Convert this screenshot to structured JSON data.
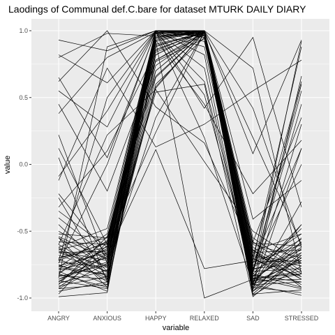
{
  "chart_data": {
    "type": "line",
    "subtype": "parallel-coordinates",
    "title": "Laodings of Communal def.C.bare for dataset MTURK DAILY DIARY",
    "xlabel": "variable",
    "ylabel": "value",
    "categories": [
      "ANGRY",
      "ANXIOUS",
      "HAPPY",
      "RELAXED",
      "SAD",
      "STRESSED"
    ],
    "ylim": [
      -1.0,
      1.0
    ],
    "yticks": [
      -1.0,
      -0.5,
      0.0,
      0.5,
      1.0
    ],
    "ytick_labels": [
      "-1.0",
      "-0.5",
      "0.0",
      "0.5",
      "1.0"
    ],
    "grid": true,
    "background": "#ebebeb",
    "grid_color": "#ffffff",
    "line_color": "#000000",
    "series": [
      {
        "values": [
          0.93,
          0.85,
          1.0,
          1.0,
          0.08,
          0.93
        ]
      },
      {
        "values": [
          0.82,
          0.61,
          1.0,
          0.99,
          -0.69,
          0.62
        ]
      },
      {
        "values": [
          0.8,
          0.98,
          0.96,
          0.98,
          -0.74,
          0.12
        ]
      },
      {
        "values": [
          0.65,
          0.05,
          0.99,
          0.42,
          0.95,
          -0.32
        ]
      },
      {
        "values": [
          0.55,
          0.28,
          1.0,
          0.52,
          -0.81,
          0.45
        ]
      },
      {
        "values": [
          0.38,
          0.8,
          0.99,
          0.99,
          -0.41,
          -0.12
        ]
      },
      {
        "values": [
          0.12,
          -0.6,
          0.93,
          0.45,
          -0.22,
          0.18
        ]
      },
      {
        "values": [
          -0.09,
          0.4,
          1.0,
          0.98,
          -0.79,
          -0.64
        ]
      },
      {
        "values": [
          -0.22,
          -0.68,
          0.11,
          -0.78,
          -0.72,
          0.88
        ]
      },
      {
        "values": [
          -0.32,
          0.1,
          0.85,
          1.0,
          0.72,
          -0.82
        ]
      },
      {
        "values": [
          -0.45,
          -0.8,
          1.0,
          1.0,
          -0.59,
          -0.61
        ]
      },
      {
        "values": [
          -0.5,
          -0.71,
          0.99,
          0.96,
          -0.9,
          -0.45
        ]
      },
      {
        "values": [
          -0.52,
          -0.55,
          0.7,
          1.0,
          -0.85,
          -0.82
        ]
      },
      {
        "values": [
          -0.55,
          -0.92,
          0.82,
          1.0,
          -0.75,
          -0.68
        ]
      },
      {
        "values": [
          -0.58,
          -0.6,
          1.0,
          0.99,
          -0.82,
          -0.92
        ]
      },
      {
        "values": [
          -0.6,
          0.22,
          0.56,
          0.02,
          -0.5,
          -0.74
        ]
      },
      {
        "values": [
          -0.62,
          -0.48,
          1.0,
          0.99,
          -0.88,
          -0.55
        ]
      },
      {
        "values": [
          -0.63,
          -0.88,
          0.95,
          0.99,
          -0.66,
          -0.86
        ]
      },
      {
        "values": [
          -0.65,
          -0.72,
          1.0,
          0.99,
          -0.93,
          -0.63
        ]
      },
      {
        "values": [
          -0.66,
          -0.65,
          0.78,
          0.97,
          -0.58,
          0.35
        ]
      },
      {
        "values": [
          -0.68,
          -0.8,
          1.0,
          1.0,
          -0.8,
          -0.78
        ]
      },
      {
        "values": [
          -0.7,
          -0.62,
          0.92,
          1.0,
          -0.7,
          -0.9
        ]
      },
      {
        "values": [
          -0.71,
          -0.85,
          0.65,
          0.99,
          -0.87,
          -0.58
        ]
      },
      {
        "values": [
          -0.72,
          -0.58,
          1.0,
          1.0,
          -0.95,
          -0.7
        ]
      },
      {
        "values": [
          -0.73,
          -0.77,
          0.89,
          0.98,
          -0.62,
          -0.84
        ]
      },
      {
        "values": [
          -0.74,
          0.0,
          1.0,
          0.99,
          -0.85,
          -0.93
        ]
      },
      {
        "values": [
          -0.75,
          -0.9,
          0.98,
          0.96,
          -0.76,
          -0.52
        ]
      },
      {
        "values": [
          -0.76,
          -0.66,
          0.74,
          0.99,
          -0.9,
          -0.88
        ]
      },
      {
        "values": [
          -0.77,
          -0.52,
          1.0,
          1.0,
          -0.68,
          -0.74
        ]
      },
      {
        "values": [
          -0.78,
          -0.82,
          0.6,
          0.95,
          -0.97,
          -0.66
        ]
      },
      {
        "values": [
          -0.79,
          -0.7,
          1.0,
          0.99,
          -0.8,
          0.6
        ]
      },
      {
        "values": [
          -0.8,
          -0.95,
          0.93,
          1.0,
          -0.55,
          -0.8
        ]
      },
      {
        "values": [
          -0.81,
          -0.63,
          0.84,
          0.97,
          -0.92,
          -0.96
        ]
      },
      {
        "values": [
          -0.82,
          -0.57,
          1.0,
          0.99,
          -0.73,
          -0.6
        ]
      },
      {
        "values": [
          -0.83,
          -0.86,
          0.7,
          1.0,
          -0.88,
          -0.72
        ]
      },
      {
        "values": [
          -0.84,
          -0.75,
          0.99,
          0.92,
          -0.64,
          -0.86
        ]
      },
      {
        "values": [
          -0.85,
          0.88,
          1.0,
          0.99,
          -0.82,
          -0.48
        ]
      },
      {
        "values": [
          -0.86,
          -0.69,
          0.96,
          1.0,
          -0.98,
          -0.76
        ]
      },
      {
        "values": [
          -0.87,
          -0.93,
          0.78,
          0.99,
          -0.71,
          -0.84
        ]
      },
      {
        "values": [
          -0.88,
          -0.61,
          1.0,
          0.96,
          -0.86,
          -0.62
        ]
      },
      {
        "values": [
          -0.89,
          -0.79,
          0.88,
          1.0,
          -0.9,
          -0.98
        ]
      },
      {
        "values": [
          -0.9,
          -0.54,
          0.66,
          0.99,
          -0.6,
          -0.7
        ]
      },
      {
        "values": [
          -0.91,
          -0.84,
          1.0,
          0.97,
          -0.77,
          -0.56
        ]
      },
      {
        "values": [
          -0.92,
          -0.67,
          0.95,
          1.0,
          -0.94,
          0.12
        ]
      },
      {
        "values": [
          -0.93,
          -0.74,
          0.57,
          0.99,
          -0.83,
          -0.88
        ]
      },
      {
        "values": [
          -0.95,
          -0.88,
          1.0,
          0.98,
          -0.66,
          -0.64
        ]
      },
      {
        "values": [
          -0.97,
          -0.58,
          0.82,
          1.0,
          -0.89,
          -0.82
        ]
      },
      {
        "values": [
          -0.99,
          -0.96,
          0.99,
          0.99,
          -0.78,
          -0.74
        ]
      },
      {
        "values": [
          0.62,
          1.0,
          0.43,
          0.16,
          -0.65,
          -0.52
        ]
      },
      {
        "values": [
          0.45,
          -0.2,
          0.77,
          0.94,
          -0.9,
          0.66
        ]
      },
      {
        "values": [
          0.22,
          -0.74,
          0.99,
          0.62,
          -0.84,
          -0.45
        ]
      },
      {
        "values": [
          -0.12,
          0.72,
          0.13,
          0.3,
          0.55,
          0.78
        ]
      },
      {
        "values": [
          -0.25,
          -0.86,
          0.99,
          0.99,
          -0.9,
          0.3
        ]
      },
      {
        "values": [
          -0.4,
          -0.69,
          0.54,
          0.6,
          -0.99,
          -0.68
        ]
      },
      {
        "values": [
          -0.55,
          -0.77,
          0.98,
          0.88,
          -0.8,
          0.55
        ]
      },
      {
        "values": [
          -0.62,
          -0.84,
          1.0,
          0.72,
          -0.92,
          -0.28
        ]
      },
      {
        "values": [
          -0.7,
          -0.59,
          0.24,
          0.99,
          -0.73,
          -0.72
        ]
      },
      {
        "values": [
          -0.78,
          -0.64,
          0.98,
          1.0,
          0.42,
          -0.62
        ]
      },
      {
        "values": [
          -0.82,
          -0.92,
          0.86,
          0.99,
          -0.81,
          0.92
        ]
      },
      {
        "values": [
          -0.86,
          -0.73,
          1.0,
          0.82,
          -0.95,
          -0.58
        ]
      },
      {
        "values": [
          -0.6,
          -0.81,
          0.92,
          -1.0,
          -0.86,
          -0.8
        ]
      },
      {
        "values": [
          -0.72,
          0.5,
          1.0,
          0.95,
          -0.69,
          -0.76
        ]
      },
      {
        "values": [
          -0.66,
          -0.76,
          0.35,
          0.99,
          -0.87,
          -0.86
        ]
      },
      {
        "values": [
          0.05,
          -0.88,
          0.9,
          0.98,
          -0.64,
          -0.92
        ]
      },
      {
        "values": [
          -0.35,
          -0.62,
          1.0,
          0.99,
          -0.78,
          0.0
        ]
      },
      {
        "values": [
          -0.88,
          -0.66,
          0.99,
          0.2,
          -0.9,
          -0.7
        ]
      },
      {
        "values": [
          -0.76,
          -0.83,
          0.58,
          0.99,
          0.2,
          -0.6
        ]
      },
      {
        "values": [
          -0.54,
          -0.71,
          1.0,
          1.0,
          -0.97,
          -0.94
        ]
      },
      {
        "values": [
          -0.93,
          -0.9,
          1.0,
          0.99,
          -0.58,
          -0.82
        ]
      },
      {
        "values": [
          -0.64,
          -0.55,
          0.94,
          1.0,
          -0.84,
          -0.66
        ]
      }
    ]
  }
}
